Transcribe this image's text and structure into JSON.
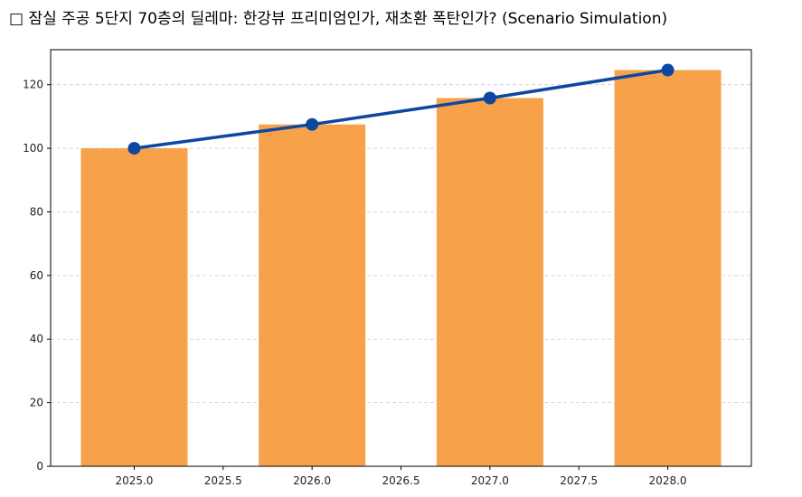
{
  "chart_data": {
    "type": "bar",
    "title": "□ 잠실 주공 5단지 70층의 딜레마: 한강뷰 프리미엄인가, 재초환 폭탄인가? (Scenario Simulation)",
    "xlabel": "",
    "ylabel": "",
    "x": [
      2025,
      2026,
      2027,
      2028
    ],
    "bar_values": [
      100,
      107.5,
      115.8,
      124.6
    ],
    "line_values": [
      100,
      107.5,
      115.8,
      124.6
    ],
    "xlim": [
      2024.53,
      2028.47
    ],
    "ylim": [
      0,
      131
    ],
    "xticks": [
      "2025.0",
      "2025.5",
      "2026.0",
      "2026.5",
      "2027.0",
      "2027.5",
      "2028.0"
    ],
    "yticks": [
      "0",
      "20",
      "40",
      "60",
      "80",
      "100",
      "120"
    ],
    "grid": "horizontal dashed",
    "legend": "none",
    "bar_color": "#F7A24B",
    "line_color": "#0D47A1"
  }
}
